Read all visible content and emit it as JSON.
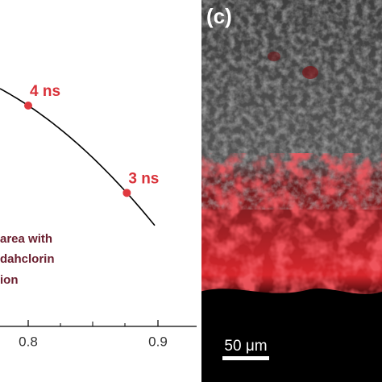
{
  "plot": {
    "xticks": [
      0.8,
      0.9
    ],
    "points": [
      {
        "label": "4 ns",
        "x": 0.8
      },
      {
        "label": "3 ns",
        "x": 0.876
      }
    ],
    "annotation": [
      "area with",
      "dahclorin",
      "ion"
    ]
  },
  "image": {
    "panel_label": "(c)",
    "scale_bar": "50 μm"
  }
}
